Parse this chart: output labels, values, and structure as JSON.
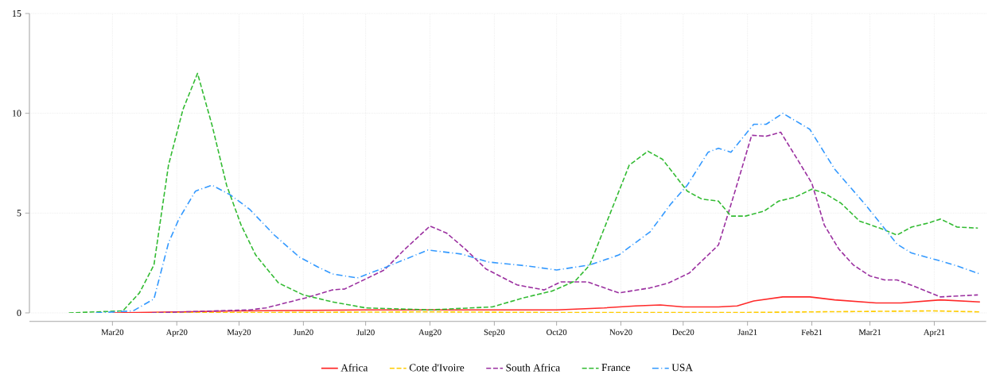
{
  "chart_data": {
    "type": "line",
    "xlim": [
      "2020-01-21",
      "2021-04-26"
    ],
    "ylim": [
      0,
      15
    ],
    "yticks": [
      0,
      5,
      10,
      15
    ],
    "xticks": [
      {
        "value": "2020-03-01",
        "label": "Mar20"
      },
      {
        "value": "2020-04-01",
        "label": "Apr20"
      },
      {
        "value": "2020-05-01",
        "label": "May20"
      },
      {
        "value": "2020-06-01",
        "label": "Jun20"
      },
      {
        "value": "2020-07-01",
        "label": "Jul20"
      },
      {
        "value": "2020-08-01",
        "label": "Aug20"
      },
      {
        "value": "2020-09-01",
        "label": "Sep20"
      },
      {
        "value": "2020-10-01",
        "label": "Oct20"
      },
      {
        "value": "2020-11-01",
        "label": "Nov20"
      },
      {
        "value": "2020-12-01",
        "label": "Dec20"
      },
      {
        "value": "2021-01-01",
        "label": "Jan21"
      },
      {
        "value": "2021-02-01",
        "label": "Feb21"
      },
      {
        "value": "2021-03-01",
        "label": "Mar21"
      },
      {
        "value": "2021-04-01",
        "label": "Apr21"
      }
    ],
    "grid": true,
    "legend": "bottom",
    "marker": "none",
    "series": [
      {
        "name": "Africa",
        "color": "#ff2a2a",
        "line_style": "solid",
        "x": [
          "2020-03-01",
          "2020-05-02",
          "2020-07-01",
          "2020-10-01",
          "2020-10-24",
          "2020-11-08",
          "2020-11-20",
          "2020-12-01",
          "2020-12-18",
          "2020-12-27",
          "2021-01-04",
          "2021-01-18",
          "2021-01-31",
          "2021-02-12",
          "2021-03-04",
          "2021-03-16",
          "2021-04-04",
          "2021-04-23"
        ],
        "values": [
          0,
          0.1,
          0.15,
          0.15,
          0.25,
          0.35,
          0.4,
          0.3,
          0.3,
          0.35,
          0.6,
          0.8,
          0.8,
          0.65,
          0.5,
          0.5,
          0.65,
          0.55
        ]
      },
      {
        "name": "Cote d'Ivoire",
        "color": "#ffcc00",
        "line_style": "dashed",
        "x": [
          "2020-03-21",
          "2020-07-31",
          "2020-10-01",
          "2020-12-31",
          "2021-01-31",
          "2021-04-01",
          "2021-04-23"
        ],
        "values": [
          0,
          0.05,
          0.02,
          0.02,
          0.05,
          0.1,
          0.05
        ]
      },
      {
        "name": "South Africa",
        "color": "#9b30a0",
        "line_style": "dashed",
        "x": [
          "2020-03-20",
          "2020-05-06",
          "2020-05-14",
          "2020-06-02",
          "2020-06-15",
          "2020-06-21",
          "2020-07-10",
          "2020-07-20",
          "2020-08-01",
          "2020-08-09",
          "2020-08-18",
          "2020-08-28",
          "2020-09-12",
          "2020-09-25",
          "2020-10-03",
          "2020-10-16",
          "2020-10-31",
          "2020-11-15",
          "2020-11-24",
          "2020-12-04",
          "2020-12-12",
          "2020-12-18",
          "2020-12-26",
          "2021-01-03",
          "2021-01-10",
          "2021-01-17",
          "2021-01-25",
          "2021-02-01",
          "2021-02-07",
          "2021-02-14",
          "2021-02-21",
          "2021-03-01",
          "2021-03-08",
          "2021-03-14",
          "2021-03-22",
          "2021-04-04",
          "2021-04-22"
        ],
        "values": [
          0,
          0.15,
          0.25,
          0.75,
          1.15,
          1.2,
          2.15,
          3.2,
          4.35,
          4.0,
          3.2,
          2.2,
          1.4,
          1.15,
          1.55,
          1.55,
          1.0,
          1.25,
          1.5,
          2.0,
          2.8,
          3.4,
          6.1,
          8.9,
          8.85,
          9.05,
          7.7,
          6.5,
          4.4,
          3.2,
          2.4,
          1.85,
          1.65,
          1.65,
          1.35,
          0.8,
          0.9
        ]
      },
      {
        "name": "France",
        "color": "#33bb33",
        "line_style": "dashed",
        "x": [
          "2020-02-09",
          "2020-03-06",
          "2020-03-14",
          "2020-03-21",
          "2020-03-28",
          "2020-04-04",
          "2020-04-11",
          "2020-04-18",
          "2020-04-25",
          "2020-05-02",
          "2020-05-09",
          "2020-05-20",
          "2020-06-01",
          "2020-06-15",
          "2020-07-01",
          "2020-08-01",
          "2020-08-31",
          "2020-09-15",
          "2020-09-29",
          "2020-10-10",
          "2020-10-17",
          "2020-11-05",
          "2020-11-14",
          "2020-11-21",
          "2020-12-03",
          "2020-12-10",
          "2020-12-18",
          "2020-12-24",
          "2020-12-31",
          "2021-01-09",
          "2021-01-16",
          "2021-01-24",
          "2021-02-01",
          "2021-02-07",
          "2021-02-15",
          "2021-02-24",
          "2021-03-07",
          "2021-03-14",
          "2021-03-21",
          "2021-03-29",
          "2021-04-04",
          "2021-04-12",
          "2021-04-22"
        ],
        "values": [
          0,
          0.1,
          1.0,
          2.4,
          7.4,
          10.2,
          12.0,
          9.4,
          6.4,
          4.4,
          2.9,
          1.5,
          0.9,
          0.55,
          0.25,
          0.15,
          0.3,
          0.75,
          1.1,
          1.6,
          2.4,
          7.4,
          8.1,
          7.7,
          6.1,
          5.7,
          5.6,
          4.85,
          4.85,
          5.1,
          5.6,
          5.8,
          6.2,
          6.0,
          5.5,
          4.6,
          4.2,
          3.9,
          4.3,
          4.5,
          4.7,
          4.3,
          4.25
        ]
      },
      {
        "name": "USA",
        "color": "#3399ff",
        "line_style": "dashdot",
        "x": [
          "2020-02-22",
          "2020-03-11",
          "2020-03-21",
          "2020-03-28",
          "2020-04-02",
          "2020-04-10",
          "2020-04-18",
          "2020-04-27",
          "2020-05-06",
          "2020-05-18",
          "2020-05-30",
          "2020-06-08",
          "2020-06-15",
          "2020-06-27",
          "2020-07-11",
          "2020-07-31",
          "2020-08-16",
          "2020-08-29",
          "2020-09-17",
          "2020-10-01",
          "2020-10-17",
          "2020-10-31",
          "2020-11-11",
          "2020-11-15",
          "2020-11-25",
          "2020-12-03",
          "2020-12-13",
          "2020-12-18",
          "2020-12-24",
          "2021-01-04",
          "2021-01-10",
          "2021-01-18",
          "2021-01-31",
          "2021-02-12",
          "2021-02-27",
          "2021-03-14",
          "2021-03-21",
          "2021-04-04",
          "2021-04-12",
          "2021-04-23"
        ],
        "values": [
          0,
          0.1,
          0.7,
          3.5,
          4.7,
          6.1,
          6.4,
          5.9,
          5.2,
          3.9,
          2.8,
          2.3,
          1.95,
          1.75,
          2.3,
          3.15,
          2.95,
          2.55,
          2.35,
          2.15,
          2.4,
          2.9,
          3.75,
          4.05,
          5.45,
          6.4,
          8.05,
          8.25,
          8.05,
          9.45,
          9.45,
          10.0,
          9.2,
          7.2,
          5.4,
          3.45,
          3.0,
          2.6,
          2.35,
          1.95
        ]
      }
    ]
  }
}
